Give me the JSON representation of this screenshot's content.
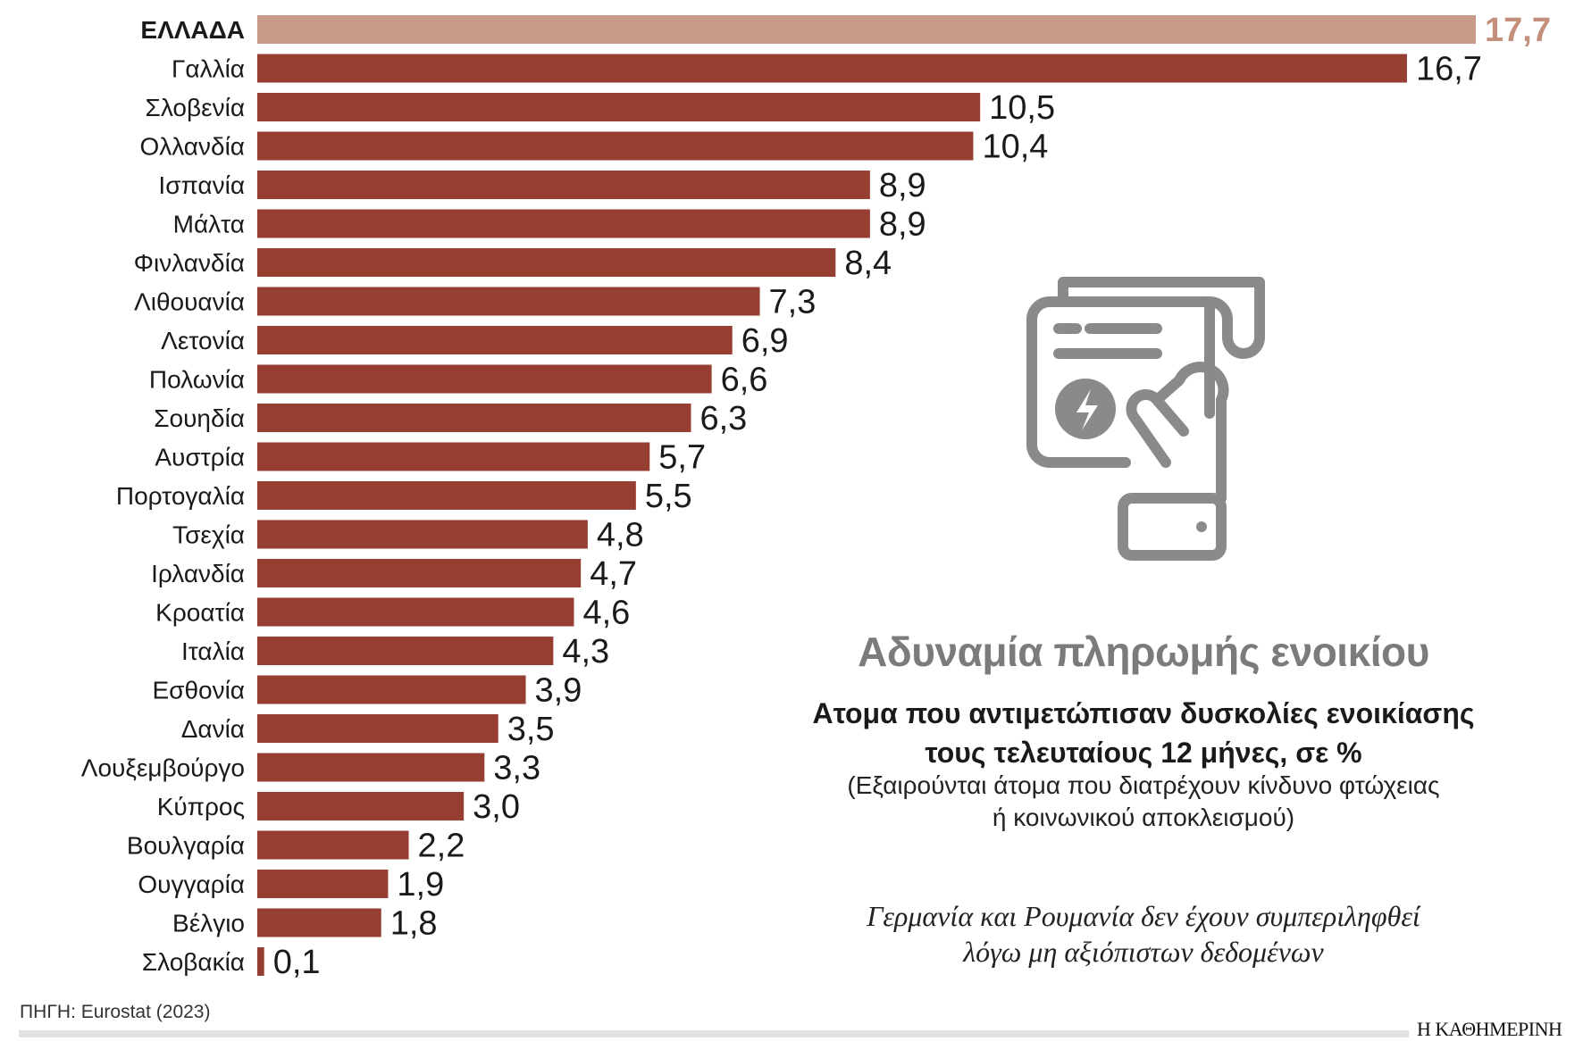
{
  "chart_data": {
    "type": "bar",
    "orientation": "horizontal",
    "title": "Αδυναμία πληρωμής ενοικίου",
    "subtitle": "Ατομα που αντιμετώπισαν δυσκολίες ενοικίασης τους τελευταίους 12 μήνες, σε %",
    "categories": [
      "ΕΛΛΑΔΑ",
      "Γαλλία",
      "Σλοβενία",
      "Ολλανδία",
      "Ισπανία",
      "Μάλτα",
      "Φινλανδία",
      "Λιθουανία",
      "Λετονία",
      "Πολωνία",
      "Σουηδία",
      "Αυστρία",
      "Πορτογαλία",
      "Τσεχία",
      "Ιρλανδία",
      "Κροατία",
      "Ιταλία",
      "Εσθονία",
      "Δανία",
      "Λουξεμβούργο",
      "Κύπρος",
      "Βουλγαρία",
      "Ουγγαρία",
      "Βέλγιο",
      "Σλοβακία"
    ],
    "values": [
      17.7,
      16.7,
      10.5,
      10.4,
      8.9,
      8.9,
      8.4,
      7.3,
      6.9,
      6.6,
      6.3,
      5.7,
      5.5,
      4.8,
      4.7,
      4.6,
      4.3,
      3.9,
      3.5,
      3.3,
      3.0,
      2.2,
      1.9,
      1.8,
      0.1
    ],
    "value_labels": [
      "17,7",
      "16,7",
      "10,5",
      "10,4",
      "8,9",
      "8,9",
      "8,4",
      "7,3",
      "6,9",
      "6,6",
      "6,3",
      "5,7",
      "5,5",
      "4,8",
      "4,7",
      "4,6",
      "4,3",
      "3,9",
      "3,5",
      "3,3",
      "3,0",
      "2,2",
      "1,9",
      "1,8",
      "0,1"
    ],
    "highlight_category": "ΕΛΛΑΔΑ",
    "colors": {
      "bar": "#963e31",
      "highlight_bar": "#c89a88",
      "highlight_label": "#c48f7b",
      "icon": "#8a8a8a",
      "title": "#7b7b7b"
    },
    "grid": false,
    "xlim": [
      0,
      17.7
    ]
  },
  "text": {
    "note_line1": "(Εξαιρούνται άτομα που διατρέχουν κίνδυνο φτώχειας",
    "note_line2": "ή κοινωνικού αποκλεισμού)",
    "subtitle_line1": "Ατομα που αντιμετώπισαν δυσκολίες ενοικίασης",
    "subtitle_line2": "τους τελευταίους 12 μήνες, σε %",
    "italic_line1": "Γερμανία και Ρουμανία δεν έχουν συμπεριληφθεί",
    "italic_line2": "λόγω μη αξιόπιστων δεδομένων",
    "source": "ΠΗΓΗ: Eurostat (2023)",
    "logo": "Η ΚΑΘΗΜΕΡΙΝΗ"
  },
  "icon": "rent-bill-in-hand-icon"
}
